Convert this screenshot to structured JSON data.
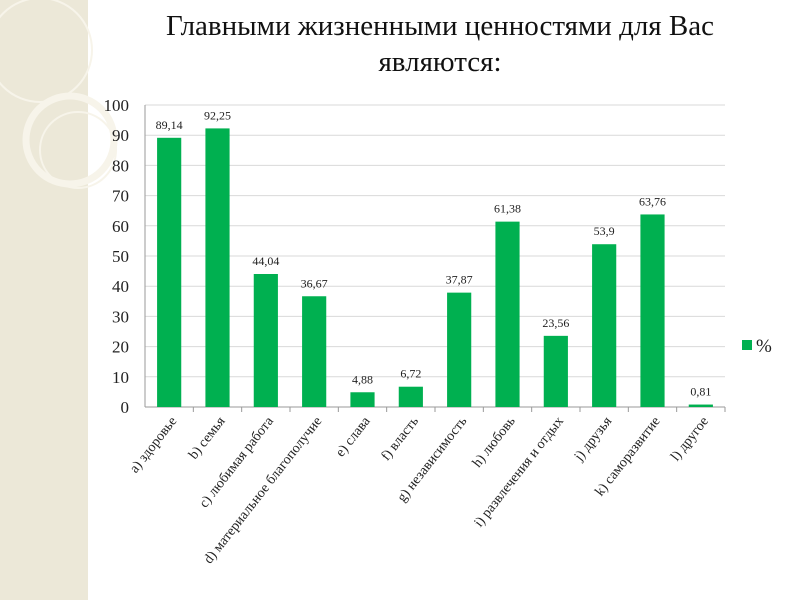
{
  "chart_data": {
    "type": "bar",
    "title": "Главными жизненными ценностями для Вас являются:",
    "categories": [
      "a)  здоровье",
      "b) семья",
      "c) любимая работа",
      "d) материальное благополучие",
      "e) слава",
      "f) власть",
      "g) независимость",
      "h) любовь",
      "i) развлечения и отдых",
      "j) друзья",
      "k) саморазвитие",
      "l) другое"
    ],
    "series": [
      {
        "name": "%",
        "values": [
          89.14,
          92.25,
          44.04,
          36.67,
          4.88,
          6.72,
          37.87,
          61.38,
          23.56,
          53.9,
          63.76,
          0.81
        ],
        "labels": [
          "89,14",
          "92,25",
          "44,04",
          "36,67",
          "4,88",
          "6,72",
          "37,87",
          "61,38",
          "23,56",
          "53,9",
          "63,76",
          "0,81"
        ],
        "color": "#00b050"
      }
    ],
    "ylim": [
      0,
      100
    ],
    "yticks": [
      0,
      10,
      20,
      30,
      40,
      50,
      60,
      70,
      80,
      90,
      100
    ],
    "grid": true,
    "legend_position": "right"
  },
  "colors": {
    "bar": "#00b050",
    "grid": "#d9d9d9",
    "axis": "#9a9a9a",
    "decor_band": "#ece8d8"
  }
}
